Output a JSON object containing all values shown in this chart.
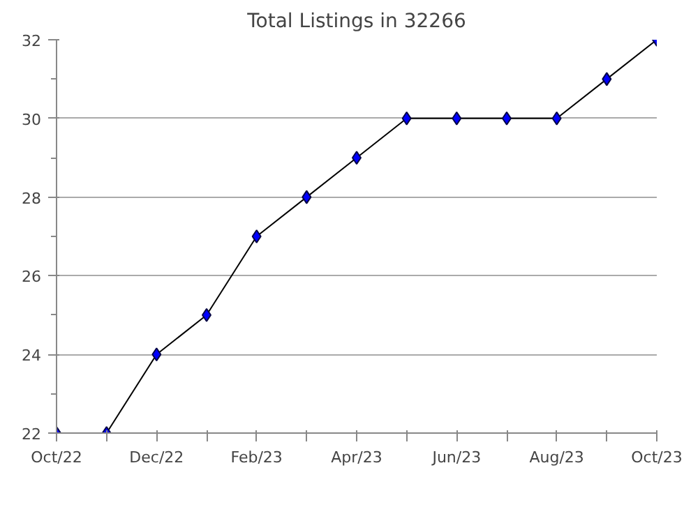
{
  "chart_data": {
    "type": "line",
    "title": "Total Listings in 32266",
    "categories": [
      "Oct/22",
      null,
      "Dec/22",
      null,
      "Feb/23",
      null,
      "Apr/23",
      null,
      "Jun/23",
      null,
      "Aug/23",
      null,
      "Oct/23"
    ],
    "series": [
      {
        "color": "#0000ff",
        "values": [
          22,
          22,
          24,
          25,
          27,
          28,
          29,
          30,
          30,
          30,
          30,
          31,
          32
        ]
      }
    ],
    "ylim": [
      22,
      32
    ],
    "yticks": [
      22,
      24,
      26,
      28,
      30,
      32
    ],
    "grid": "y",
    "marker": "diamond",
    "line_style": "solid"
  }
}
